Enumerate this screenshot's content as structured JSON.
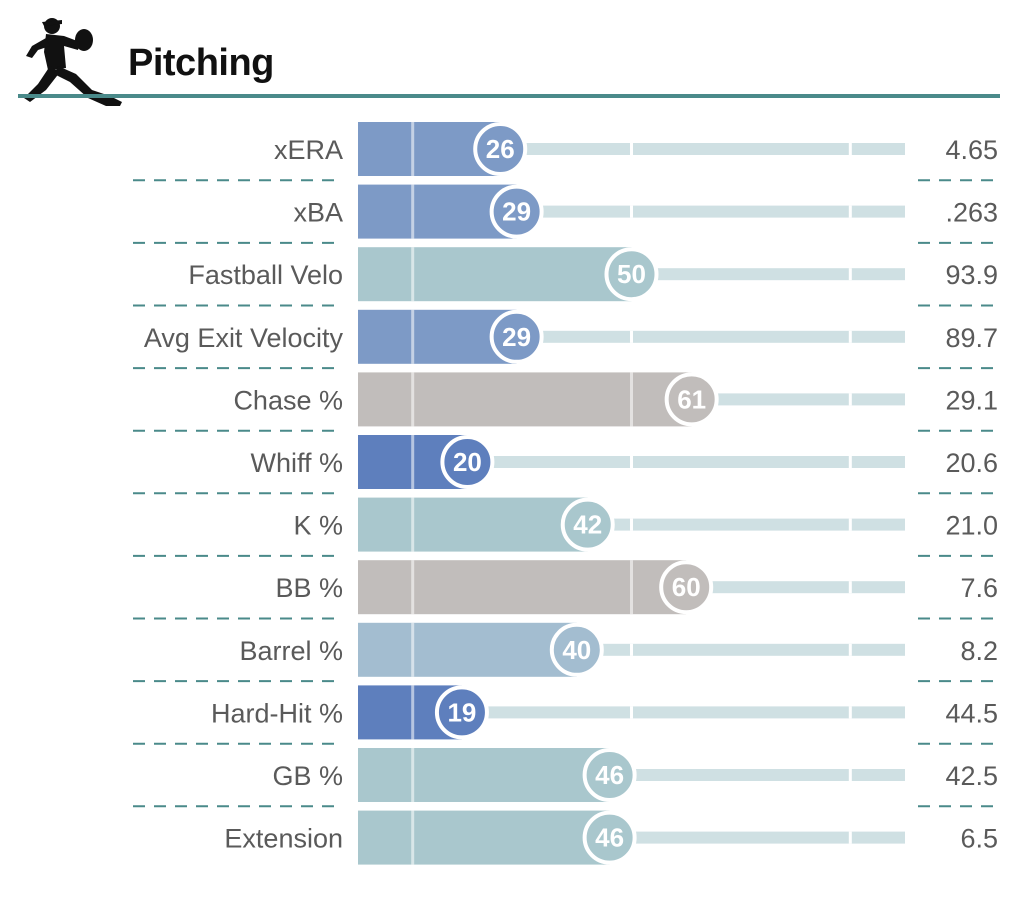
{
  "header": {
    "title": "Pitching",
    "icon": "pitcher-silhouette-icon",
    "rule_color": "#4a8a8a"
  },
  "colors": {
    "low": "#7d9ac6",
    "very_low": "#5e7fbd",
    "mid": "#a9c7cd",
    "mid_blue": "#a3bdd0",
    "high": "#c1bdbb",
    "track": "#cfe0e3",
    "text": "#5a5a5a",
    "separator": "#4a8a8a"
  },
  "chart_data": {
    "type": "bar",
    "title": "Pitching",
    "xlim": [
      0,
      100
    ],
    "categories": [
      "xERA",
      "xBA",
      "Fastball Velo",
      "Avg Exit Velocity",
      "Chase %",
      "Whiff %",
      "K %",
      "BB %",
      "Barrel %",
      "Hard-Hit %",
      "GB %",
      "Extension"
    ],
    "series": [
      {
        "values": [
          26,
          29,
          50,
          29,
          61,
          20,
          42,
          60,
          40,
          19,
          46,
          46
        ]
      }
    ],
    "stat_values": [
      "4.65",
      ".263",
      "93.9",
      "89.7",
      "29.1",
      "20.6",
      "21.0",
      "7.6",
      "8.2",
      "44.5",
      "42.5",
      "6.5"
    ],
    "bar_colors": [
      "#7d9ac6",
      "#7d9ac6",
      "#a9c7cd",
      "#7d9ac6",
      "#c1bdbb",
      "#5e7fbd",
      "#a9c7cd",
      "#c1bdbb",
      "#a3bdd0",
      "#5e7fbd",
      "#a9c7cd",
      "#a9c7cd"
    ]
  }
}
